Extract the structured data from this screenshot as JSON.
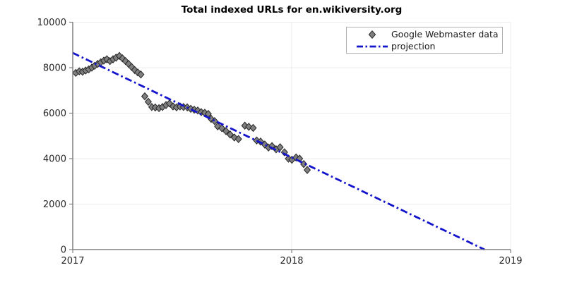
{
  "chart_data": {
    "type": "scatter",
    "title": "Total indexed URLs for en.wikiversity.org",
    "xlabel": "",
    "ylabel": "",
    "xlim": [
      2017,
      2019
    ],
    "ylim": [
      0,
      10000
    ],
    "x_ticks": [
      2017,
      2018,
      2019
    ],
    "y_ticks": [
      0,
      2000,
      4000,
      6000,
      8000,
      10000
    ],
    "grid": true,
    "legend_position": "upper right",
    "series": [
      {
        "name": "Google Webmaster data",
        "type": "scatter",
        "marker": "diamond",
        "color": "#7f7f7f",
        "edge_color": "#262626",
        "x": [
          2017.014,
          2017.03,
          2017.045,
          2017.059,
          2017.073,
          2017.087,
          2017.1,
          2017.114,
          2017.128,
          2017.142,
          2017.156,
          2017.17,
          2017.184,
          2017.198,
          2017.213,
          2017.227,
          2017.241,
          2017.255,
          2017.269,
          2017.283,
          2017.297,
          2017.311,
          2017.329,
          2017.345,
          2017.361,
          2017.377,
          2017.394,
          2017.41,
          2017.426,
          2017.442,
          2017.458,
          2017.474,
          2017.49,
          2017.506,
          2017.523,
          2017.539,
          2017.555,
          2017.571,
          2017.587,
          2017.603,
          2017.619,
          2017.632,
          2017.648,
          2017.662,
          2017.681,
          2017.7,
          2017.719,
          2017.738,
          2017.757,
          2017.786,
          2017.804,
          2017.824,
          2017.84,
          2017.858,
          2017.877,
          2017.894,
          2017.91,
          2017.929,
          2017.947,
          2017.967,
          2017.985,
          2018.001,
          2018.02,
          2018.036,
          2018.055,
          2018.071
        ],
        "y": [
          7770,
          7840,
          7820,
          7875,
          7925,
          8000,
          8080,
          8165,
          8235,
          8310,
          8370,
          8290,
          8370,
          8440,
          8515,
          8410,
          8290,
          8165,
          8030,
          7895,
          7790,
          7700,
          6740,
          6500,
          6270,
          6250,
          6220,
          6270,
          6355,
          6425,
          6295,
          6255,
          6295,
          6270,
          6255,
          6190,
          6150,
          6115,
          6045,
          6015,
          5965,
          5750,
          5650,
          5420,
          5340,
          5210,
          5060,
          4930,
          4860,
          5450,
          5400,
          5350,
          4800,
          4750,
          4620,
          4490,
          4550,
          4410,
          4500,
          4280,
          4000,
          3950,
          4050,
          4000,
          3760,
          3500
        ]
      },
      {
        "name": "projection",
        "type": "line",
        "style": "dashdot",
        "color": "#1414cc",
        "x": [
          2017.0,
          2018.881
        ],
        "y": [
          8650,
          0
        ]
      }
    ],
    "colors": {
      "axis": "#808080",
      "grid": "#ececec",
      "tick_text": "#262626",
      "background": "#ffffff"
    }
  }
}
